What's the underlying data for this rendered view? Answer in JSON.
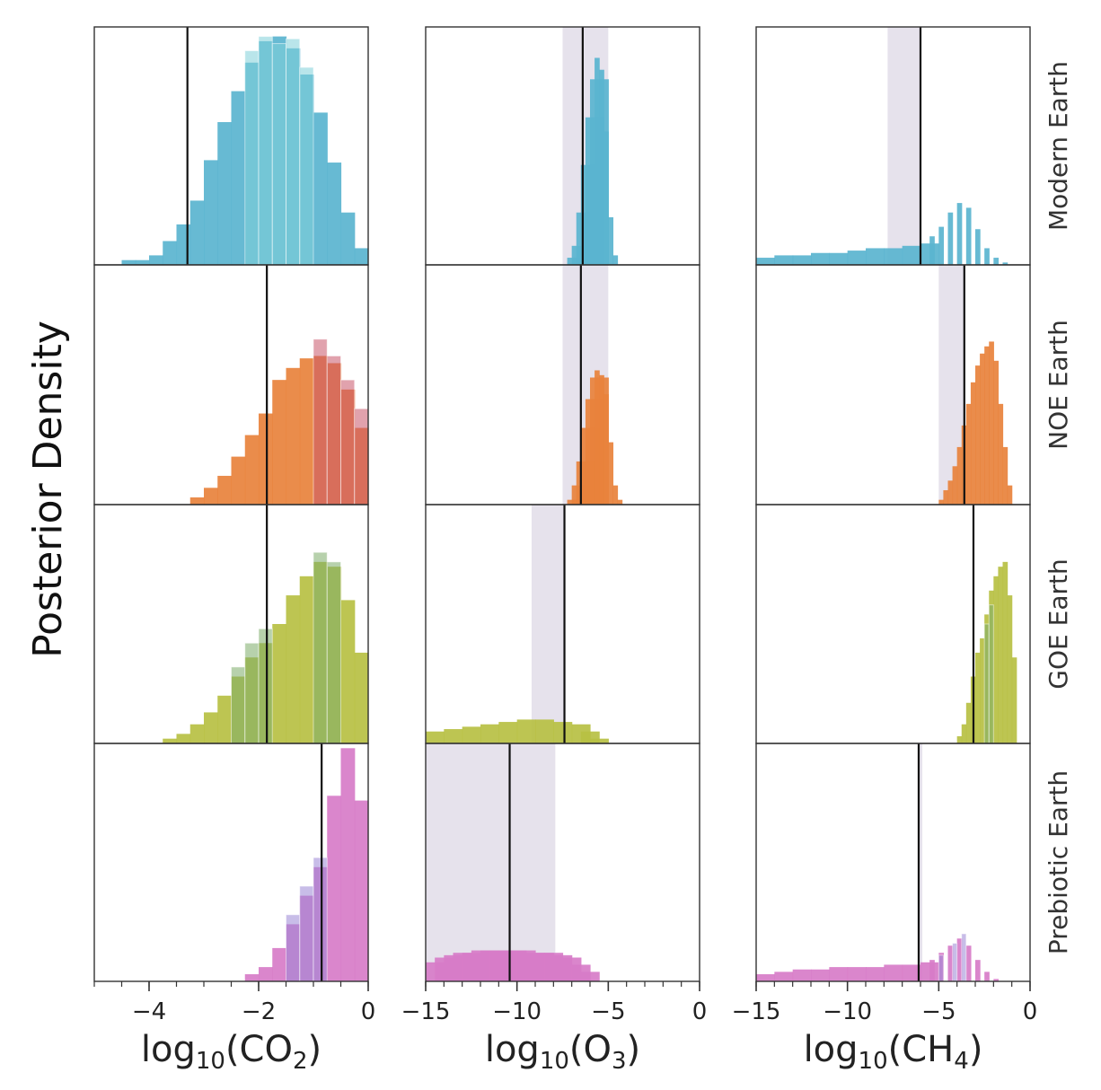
{
  "chart_data": {
    "type": "histogram-grid",
    "ylabel": "Posterior Density",
    "rows": [
      "Modern Earth",
      "NOE Earth",
      "GOE Earth",
      "Prebiotic Earth"
    ],
    "row_colors": [
      "#5ab4cf",
      "#e8823c",
      "#b7c043",
      "#d77cc8"
    ],
    "alt_colors": [
      "#7fd0d8",
      "#c9556a",
      "#7bab68",
      "#9a86d6"
    ],
    "columns": [
      {
        "key": "co2",
        "xlabel": {
          "pre": "log",
          "sub": "10",
          "mid": "(CO",
          "molsub": "2",
          "post": ")"
        },
        "xlim": [
          -5,
          0
        ],
        "ticks": [
          -4,
          -2,
          0
        ],
        "tick_labels": [
          "−4",
          "−2",
          "0"
        ],
        "minor_step": 0.5,
        "bin_width": 0.25
      },
      {
        "key": "o3",
        "xlabel": {
          "pre": "log",
          "sub": "10",
          "mid": "(O",
          "molsub": "3",
          "post": ")"
        },
        "xlim": [
          -15,
          0
        ],
        "ticks": [
          -15,
          -10,
          -5,
          0
        ],
        "tick_labels": [
          "−15",
          "−10",
          "−5",
          "0"
        ],
        "minor_step": 1,
        "bin_width": 0.25
      },
      {
        "key": "ch4",
        "xlabel": {
          "pre": "log",
          "sub": "10",
          "mid": "(CH",
          "molsub": "4",
          "post": ")"
        },
        "xlim": [
          -15,
          0
        ],
        "ticks": [
          -15,
          -10,
          -5,
          0
        ],
        "tick_labels": [
          "−15",
          "−10",
          "−5",
          "0"
        ],
        "minor_step": 1,
        "bin_width": 0.25
      }
    ],
    "panels": [
      [
        {
          "truth": -3.3,
          "band": null,
          "hist": [
            [
              -4.5,
              0.02
            ],
            [
              -4.25,
              0.02
            ],
            [
              -4.0,
              0.04
            ],
            [
              -3.75,
              0.1
            ],
            [
              -3.5,
              0.17
            ],
            [
              -3.25,
              0.27
            ],
            [
              -3.0,
              0.44
            ],
            [
              -2.75,
              0.6
            ],
            [
              -2.5,
              0.73
            ],
            [
              -2.25,
              0.85
            ],
            [
              -2.0,
              0.94
            ],
            [
              -1.75,
              0.96
            ],
            [
              -1.5,
              0.91
            ],
            [
              -1.25,
              0.8
            ],
            [
              -1.0,
              0.64
            ],
            [
              -0.75,
              0.43
            ],
            [
              -0.5,
              0.22
            ],
            [
              -0.25,
              0.07
            ]
          ],
          "alt": [
            [
              -2.25,
              0.9
            ],
            [
              -2.0,
              0.96
            ],
            [
              -1.75,
              0.93
            ],
            [
              -1.5,
              0.95
            ],
            [
              -1.25,
              0.83
            ]
          ]
        },
        {
          "truth": -6.4,
          "band": [
            -7.5,
            -5.0
          ],
          "hist": [
            [
              -7.25,
              0.03
            ],
            [
              -7.0,
              0.08
            ],
            [
              -6.75,
              0.22
            ],
            [
              -6.5,
              0.42
            ],
            [
              -6.25,
              0.62
            ],
            [
              -6.0,
              0.78
            ],
            [
              -5.75,
              0.87
            ],
            [
              -5.5,
              0.82
            ],
            [
              -5.25,
              0.56
            ],
            [
              -5.0,
              0.2
            ],
            [
              -4.75,
              0.04
            ]
          ],
          "alt": []
        },
        {
          "truth": -6.0,
          "band": [
            -7.8,
            -6.0
          ],
          "hist": [
            [
              -15,
              0.03
            ],
            [
              -14,
              0.04
            ],
            [
              -13,
              0.04
            ],
            [
              -12,
              0.05
            ],
            [
              -11,
              0.05
            ],
            [
              -10,
              0.06
            ],
            [
              -9,
              0.07
            ],
            [
              -8,
              0.07
            ],
            [
              -7,
              0.08
            ],
            [
              -6,
              0.09
            ],
            [
              -5.5,
              0.12
            ],
            [
              -5.0,
              0.16
            ],
            [
              -4.5,
              0.22
            ],
            [
              -4.0,
              0.26
            ],
            [
              -3.5,
              0.24
            ],
            [
              -3.0,
              0.15
            ],
            [
              -2.5,
              0.07
            ],
            [
              -2.0,
              0.03
            ],
            [
              -1.5,
              0.01
            ]
          ],
          "alt": []
        }
      ],
      [
        {
          "truth": -1.85,
          "band": null,
          "hist": [
            [
              -3.25,
              0.03
            ],
            [
              -3.0,
              0.07
            ],
            [
              -2.75,
              0.12
            ],
            [
              -2.5,
              0.2
            ],
            [
              -2.25,
              0.29
            ],
            [
              -2.0,
              0.38
            ],
            [
              -1.75,
              0.52
            ],
            [
              -1.5,
              0.57
            ],
            [
              -1.25,
              0.61
            ],
            [
              -1.0,
              0.62
            ],
            [
              -0.75,
              0.59
            ],
            [
              -0.5,
              0.48
            ],
            [
              -0.25,
              0.32
            ]
          ],
          "alt": [
            [
              -1.0,
              0.69
            ],
            [
              -0.75,
              0.62
            ],
            [
              -0.5,
              0.52
            ],
            [
              -0.25,
              0.4
            ]
          ]
        },
        {
          "truth": -6.5,
          "band": [
            -7.5,
            -5.0
          ],
          "hist": [
            [
              -7.25,
              0.02
            ],
            [
              -7.0,
              0.08
            ],
            [
              -6.75,
              0.18
            ],
            [
              -6.5,
              0.32
            ],
            [
              -6.25,
              0.44
            ],
            [
              -6.0,
              0.53
            ],
            [
              -5.75,
              0.56
            ],
            [
              -5.5,
              0.54
            ],
            [
              -5.25,
              0.46
            ],
            [
              -5.0,
              0.26
            ],
            [
              -4.75,
              0.08
            ],
            [
              -4.5,
              0.02
            ]
          ],
          "alt": []
        },
        {
          "truth": -3.6,
          "band": [
            -5.0,
            -3.6
          ],
          "hist": [
            [
              -5.0,
              0.02
            ],
            [
              -4.75,
              0.06
            ],
            [
              -4.5,
              0.1
            ],
            [
              -4.25,
              0.16
            ],
            [
              -4.0,
              0.24
            ],
            [
              -3.75,
              0.33
            ],
            [
              -3.5,
              0.42
            ],
            [
              -3.25,
              0.51
            ],
            [
              -3.0,
              0.58
            ],
            [
              -2.75,
              0.63
            ],
            [
              -2.5,
              0.66
            ],
            [
              -2.25,
              0.68
            ],
            [
              -2.0,
              0.6
            ],
            [
              -1.75,
              0.42
            ],
            [
              -1.5,
              0.24
            ],
            [
              -1.25,
              0.08
            ]
          ],
          "alt": []
        }
      ],
      [
        {
          "truth": -1.85,
          "band": null,
          "hist": [
            [
              -3.75,
              0.02
            ],
            [
              -3.5,
              0.04
            ],
            [
              -3.25,
              0.08
            ],
            [
              -3.0,
              0.13
            ],
            [
              -2.75,
              0.2
            ],
            [
              -2.5,
              0.28
            ],
            [
              -2.25,
              0.36
            ],
            [
              -2.0,
              0.42
            ],
            [
              -1.75,
              0.5
            ],
            [
              -1.5,
              0.62
            ],
            [
              -1.25,
              0.7
            ],
            [
              -1.0,
              0.76
            ],
            [
              -0.75,
              0.74
            ],
            [
              -0.5,
              0.6
            ],
            [
              -0.25,
              0.38
            ]
          ],
          "alt": [
            [
              -2.5,
              0.32
            ],
            [
              -2.25,
              0.42
            ],
            [
              -2.0,
              0.48
            ],
            [
              -1.0,
              0.8
            ],
            [
              -0.75,
              0.76
            ]
          ]
        },
        {
          "truth": -7.4,
          "band": [
            -9.2,
            -7.4
          ],
          "hist": [
            [
              -15,
              0.05
            ],
            [
              -14,
              0.06
            ],
            [
              -13,
              0.07
            ],
            [
              -12,
              0.08
            ],
            [
              -11,
              0.09
            ],
            [
              -10,
              0.1
            ],
            [
              -9,
              0.1
            ],
            [
              -8,
              0.09
            ],
            [
              -7,
              0.08
            ],
            [
              -6.5,
              0.05
            ],
            [
              -6,
              0.02
            ]
          ],
          "alt": []
        },
        {
          "truth": -3.1,
          "band": null,
          "hist": [
            [
              -4.0,
              0.03
            ],
            [
              -3.75,
              0.08
            ],
            [
              -3.5,
              0.17
            ],
            [
              -3.25,
              0.28
            ],
            [
              -3.0,
              0.38
            ],
            [
              -2.75,
              0.44
            ],
            [
              -2.5,
              0.54
            ],
            [
              -2.25,
              0.64
            ],
            [
              -2.0,
              0.7
            ],
            [
              -1.75,
              0.74
            ],
            [
              -1.5,
              0.76
            ],
            [
              -1.25,
              0.62
            ],
            [
              -1.0,
              0.36
            ]
          ],
          "alt": [
            [
              -2.5,
              0.5
            ],
            [
              -2.25,
              0.58
            ]
          ]
        }
      ],
      [
        {
          "truth": -0.85,
          "band": null,
          "hist": [
            [
              -2.25,
              0.03
            ],
            [
              -2.0,
              0.06
            ],
            [
              -1.75,
              0.14
            ],
            [
              -1.5,
              0.24
            ],
            [
              -1.25,
              0.36
            ],
            [
              -1.0,
              0.48
            ],
            [
              -0.75,
              0.78
            ],
            [
              -0.5,
              0.98
            ],
            [
              -0.25,
              0.76
            ]
          ],
          "alt": [
            [
              -1.5,
              0.28
            ],
            [
              -1.25,
              0.4
            ],
            [
              -1.0,
              0.52
            ]
          ]
        },
        {
          "truth": -10.4,
          "band": [
            -15,
            -7.9
          ],
          "hist": [
            [
              -15,
              0.08
            ],
            [
              -14.5,
              0.1
            ],
            [
              -14,
              0.11
            ],
            [
              -13.5,
              0.12
            ],
            [
              -13,
              0.12
            ],
            [
              -12.5,
              0.13
            ],
            [
              -12,
              0.13
            ],
            [
              -11.5,
              0.13
            ],
            [
              -11,
              0.13
            ],
            [
              -10.5,
              0.13
            ],
            [
              -10,
              0.13
            ],
            [
              -9.5,
              0.12
            ],
            [
              -9,
              0.12
            ],
            [
              -8.5,
              0.12
            ],
            [
              -8,
              0.11
            ],
            [
              -7.5,
              0.1
            ],
            [
              -7,
              0.07
            ],
            [
              -6.5,
              0.04
            ]
          ],
          "alt": []
        },
        {
          "truth": -6.1,
          "band": [
            -6.1,
            -5.9
          ],
          "hist": [
            [
              -15,
              0.03
            ],
            [
              -14,
              0.04
            ],
            [
              -13,
              0.05
            ],
            [
              -12,
              0.05
            ],
            [
              -11,
              0.06
            ],
            [
              -10,
              0.06
            ],
            [
              -9,
              0.06
            ],
            [
              -8,
              0.07
            ],
            [
              -7,
              0.07
            ],
            [
              -6,
              0.08
            ],
            [
              -5.5,
              0.09
            ],
            [
              -5.0,
              0.12
            ],
            [
              -4.5,
              0.15
            ],
            [
              -4.0,
              0.18
            ],
            [
              -3.5,
              0.15
            ],
            [
              -3.0,
              0.09
            ],
            [
              -2.5,
              0.04
            ],
            [
              -2.0,
              0.01
            ]
          ],
          "alt": [
            [
              -4.25,
              0.16
            ],
            [
              -3.75,
              0.2
            ],
            [
              -5.0,
              0.11
            ]
          ]
        }
      ]
    ]
  }
}
